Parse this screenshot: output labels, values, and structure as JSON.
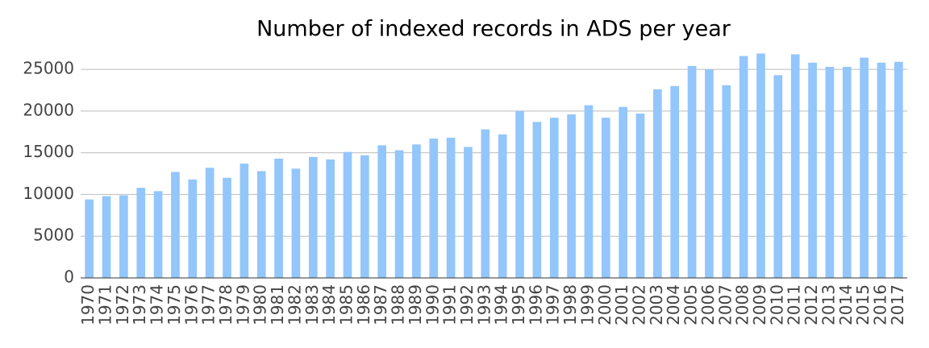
{
  "chart_data": {
    "type": "bar",
    "title": "Number of indexed records in ADS per year",
    "categories": [
      "1970",
      "1971",
      "1972",
      "1973",
      "1974",
      "1975",
      "1976",
      "1977",
      "1978",
      "1979",
      "1980",
      "1981",
      "1982",
      "1983",
      "1984",
      "1985",
      "1986",
      "1987",
      "1988",
      "1989",
      "1990",
      "1991",
      "1992",
      "1993",
      "1994",
      "1995",
      "1996",
      "1997",
      "1998",
      "1999",
      "2000",
      "2001",
      "2002",
      "2003",
      "2004",
      "2005",
      "2006",
      "2007",
      "2008",
      "2009",
      "2010",
      "2011",
      "2012",
      "2013",
      "2014",
      "2015",
      "2016",
      "2017"
    ],
    "values": [
      9400,
      9800,
      9900,
      10800,
      10400,
      12700,
      11800,
      13200,
      12000,
      13700,
      12800,
      14300,
      13100,
      14500,
      14200,
      15100,
      14700,
      15900,
      15300,
      16000,
      16700,
      16800,
      15700,
      17800,
      17200,
      20000,
      18700,
      19200,
      19600,
      20700,
      19200,
      20500,
      19700,
      22600,
      23000,
      25400,
      25000,
      23100,
      26600,
      26900,
      24300,
      26800,
      25800,
      25300,
      25300,
      26400,
      25800,
      25900
    ],
    "color": "#93c6fb",
    "ylim": [
      0,
      28000
    ],
    "yticks": [
      0,
      5000,
      10000,
      15000,
      20000,
      25000
    ],
    "grid": true
  }
}
